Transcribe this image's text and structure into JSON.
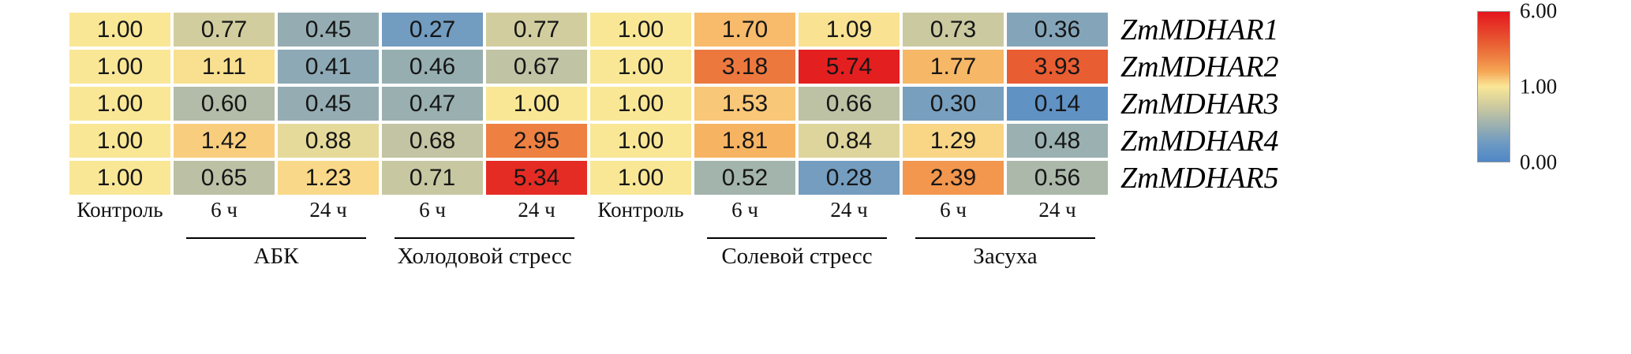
{
  "chart_data": {
    "type": "heatmap",
    "rows": [
      "ZmMDHAR1",
      "ZmMDHAR2",
      "ZmMDHAR3",
      "ZmMDHAR4",
      "ZmMDHAR5"
    ],
    "columns": [
      "Контроль",
      "6 ч",
      "24 ч",
      "6 ч",
      "24 ч",
      "Контроль",
      "6 ч",
      "24 ч",
      "6 ч",
      "24 ч"
    ],
    "values": [
      [
        1.0,
        0.77,
        0.45,
        0.27,
        0.77,
        1.0,
        1.7,
        1.09,
        0.73,
        0.36
      ],
      [
        1.0,
        1.11,
        0.41,
        0.46,
        0.67,
        1.0,
        3.18,
        5.74,
        1.77,
        3.93
      ],
      [
        1.0,
        0.6,
        0.45,
        0.47,
        1.0,
        1.0,
        1.53,
        0.66,
        0.3,
        0.14
      ],
      [
        1.0,
        1.42,
        0.88,
        0.68,
        2.95,
        1.0,
        1.81,
        0.84,
        1.29,
        0.48
      ],
      [
        1.0,
        0.65,
        1.23,
        0.71,
        5.34,
        1.0,
        0.52,
        0.28,
        2.39,
        0.56
      ]
    ],
    "groups": [
      {
        "label": "АБК",
        "start": 1,
        "span": 2
      },
      {
        "label": "Холодовой стресс",
        "start": 3,
        "span": 2
      },
      {
        "label": "Солевой стресс",
        "start": 6,
        "span": 2
      },
      {
        "label": "Засуха",
        "start": 8,
        "span": 2
      }
    ],
    "colorbar": {
      "ticks": [
        {
          "label": "6.00",
          "value": 6
        },
        {
          "label": "1.00",
          "value": 1
        },
        {
          "label": "0.00",
          "value": 0
        }
      ],
      "scale": {
        "min": 0,
        "mid": 1,
        "max": 6
      },
      "stops": [
        {
          "v": 0,
          "color": "#4F87C6"
        },
        {
          "v": 0.25,
          "color": "#6E9AC2"
        },
        {
          "v": 0.5,
          "color": "#9FB2AE"
        },
        {
          "v": 0.75,
          "color": "#CFCB9F"
        },
        {
          "v": 1,
          "color": "#F9E796"
        },
        {
          "v": 1.5,
          "color": "#F8C97A"
        },
        {
          "v": 2,
          "color": "#F5A755"
        },
        {
          "v": 3,
          "color": "#EE7E41"
        },
        {
          "v": 4,
          "color": "#E85A31"
        },
        {
          "v": 6,
          "color": "#E3161E"
        }
      ]
    }
  }
}
